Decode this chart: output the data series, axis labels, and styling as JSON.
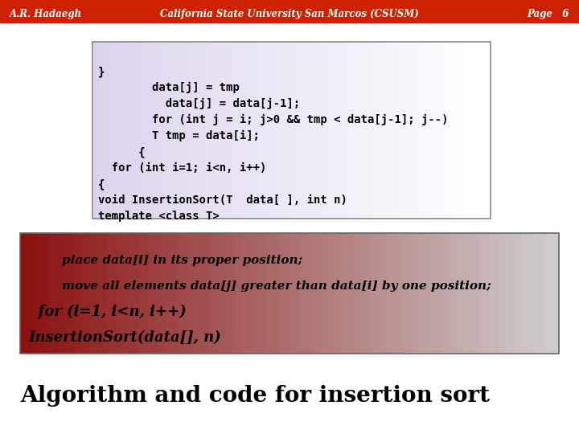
{
  "title": "Algorithm and code for insertion sort",
  "title_fontsize": 20,
  "title_color": "#000000",
  "slide_bg": "#ffffff",
  "slide_bg_dark": "#c8c8c8",
  "algo_box": {
    "text_lines": [
      "InsertionSort(data[], n)",
      "  for (i=1, i<n, i++)",
      "        move all elements data[j] greater than data[i] by one position;",
      "        place data[i] in its proper position;"
    ],
    "font_color": "#000000",
    "bg_left": "#8B1010",
    "bg_right": "#d0d0d0",
    "border_color": "#666666"
  },
  "code_box": {
    "text_lines": [
      "template <class T>",
      "void InsertionSort(T  data[ ], int n)",
      "{",
      "  for (int i=1; i<n, i++)",
      "      {",
      "        T tmp = data[i];",
      "        for (int j = i; j>0 && tmp < data[j-1]; j--)",
      "          data[j] = data[j-1];",
      "        data[j] = tmp",
      "}"
    ],
    "bg_left": "#dcd4ec",
    "bg_right": "#ffffff",
    "border_color": "#888888",
    "font_color": "#000000"
  },
  "footer_bg": "#cc2200",
  "footer_text_color": "#ffffff",
  "footer_left": "A.R. Hadaegh",
  "footer_center": "California State University San Marcos (CSUSM)",
  "footer_right": "Page   6"
}
